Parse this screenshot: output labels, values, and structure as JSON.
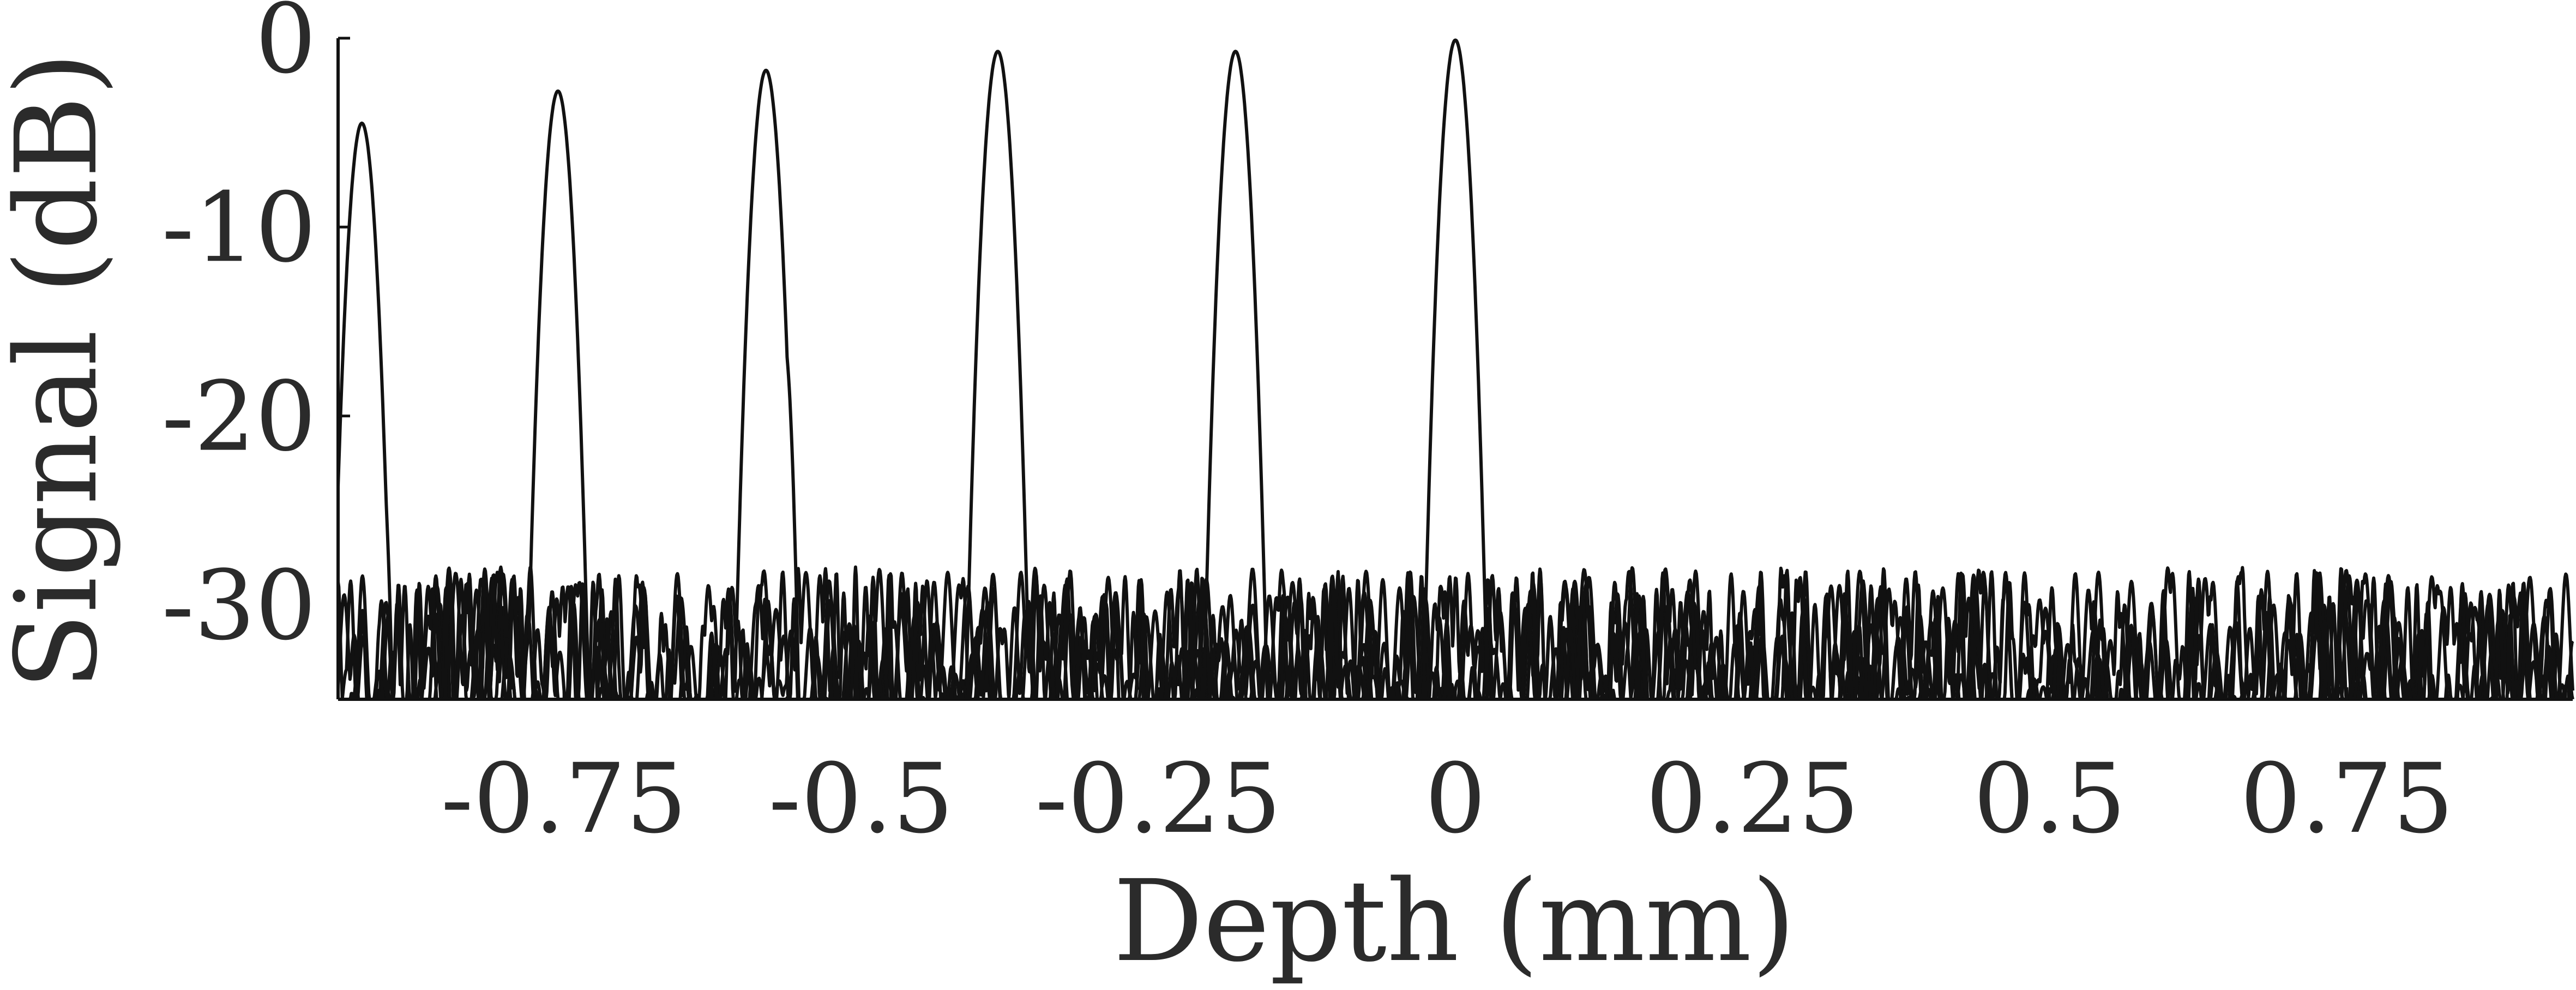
{
  "chart_data": {
    "type": "line",
    "xlabel": "Depth (mm)",
    "ylabel": "Signal (dB)",
    "xlim": [
      -0.94,
      0.94
    ],
    "ylim": [
      -35,
      0
    ],
    "x_ticks": [
      -0.75,
      -0.5,
      -0.25,
      0,
      0.25,
      0.5,
      0.75
    ],
    "x_tick_labels": [
      "-0.75",
      "-0.5",
      "-0.25",
      "0",
      "0.25",
      "0.5",
      "0.75"
    ],
    "y_ticks": [
      0,
      -10,
      -20,
      -30
    ],
    "y_tick_labels": [
      "0",
      "-10",
      "-20",
      "-30"
    ],
    "grid": false,
    "legend": "none",
    "line_color": "#111111",
    "noise_floor_db": -30,
    "series": [
      {
        "peak_depth": -0.92,
        "peak_db": -4.5,
        "shoulder_depth": -0.905,
        "shoulder_db": -21
      },
      {
        "peak_depth": -0.755,
        "peak_db": -2.8,
        "shoulder_depth": -0.74,
        "shoulder_db": -21
      },
      {
        "peak_depth": -0.58,
        "peak_db": -1.7,
        "shoulder_depth": -0.565,
        "shoulder_db": -16
      },
      {
        "peak_depth": -0.385,
        "peak_db": -0.7,
        "shoulder_depth": -0.37,
        "shoulder_db": -22.5
      },
      {
        "peak_depth": -0.185,
        "peak_db": -0.7,
        "shoulder_depth": -0.17,
        "shoulder_db": -19
      },
      {
        "peak_depth": 0.0,
        "peak_db": -0.1,
        "shoulder_depth": 0.015,
        "shoulder_db": -23.5
      }
    ]
  }
}
